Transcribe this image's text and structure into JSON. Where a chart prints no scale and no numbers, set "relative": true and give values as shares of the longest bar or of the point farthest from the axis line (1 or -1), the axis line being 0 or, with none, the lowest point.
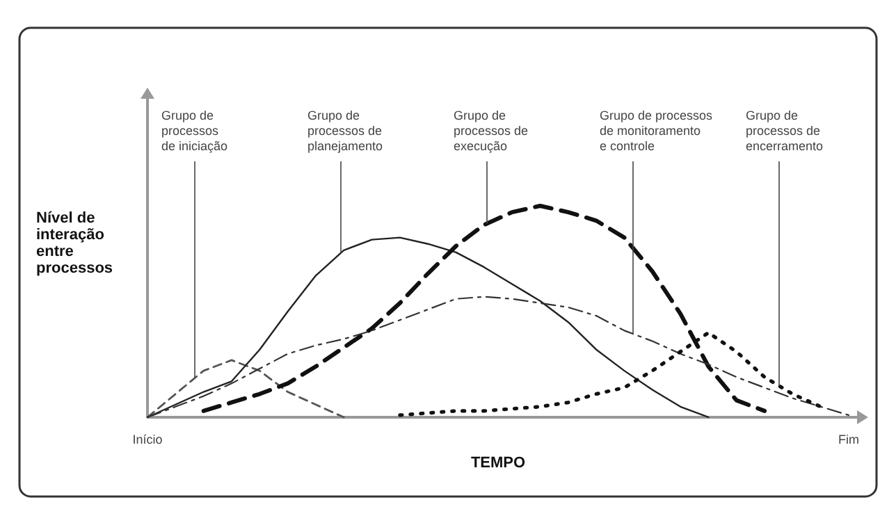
{
  "chart_data": {
    "type": "line",
    "relative": true,
    "xlabel": "TEMPO",
    "ylabel": "Nível de\ninteração\nentre\nprocessos",
    "marker": "none",
    "categories": [
      "Início",
      null,
      null,
      null,
      null,
      null,
      null,
      null,
      null,
      null,
      null,
      null,
      null,
      null,
      null,
      null,
      null,
      null,
      null,
      null,
      null,
      null,
      null,
      null,
      null,
      "Fim"
    ],
    "series": [
      {
        "color": "#555555",
        "line_style": "dashed",
        "values": [
          0,
          0.11,
          0.22,
          0.27,
          0.22,
          0.12,
          0.06,
          0,
          null,
          null,
          null,
          null,
          null,
          null,
          null,
          null,
          null,
          null,
          null,
          null,
          null,
          null,
          null,
          null,
          null,
          null
        ]
      },
      {
        "color": "#222222",
        "line_style": "solid",
        "values": [
          0,
          0.06,
          0.12,
          0.17,
          0.32,
          0.5,
          0.67,
          0.79,
          0.84,
          0.85,
          0.82,
          0.78,
          0.71,
          0.63,
          0.55,
          0.45,
          0.32,
          0.22,
          0.13,
          0.05,
          0,
          null,
          null,
          null,
          null,
          null
        ]
      },
      {
        "color": "#111111",
        "line_style": "dashed",
        "values": [
          null,
          null,
          0.03,
          0.07,
          0.11,
          0.16,
          0.24,
          0.33,
          0.42,
          0.54,
          0.68,
          0.81,
          0.91,
          0.97,
          1,
          0.97,
          0.93,
          0.85,
          0.69,
          0.49,
          0.24,
          0.08,
          0.03,
          null,
          null,
          null
        ]
      },
      {
        "color": "#333333",
        "line_style": "dashdot",
        "values": [
          0,
          0.05,
          0.1,
          0.16,
          0.23,
          0.3,
          0.34,
          0.37,
          0.41,
          0.46,
          0.51,
          0.56,
          0.57,
          0.56,
          0.54,
          0.52,
          0.48,
          0.41,
          0.36,
          0.3,
          0.25,
          0.19,
          0.14,
          0.09,
          0.05,
          0.01
        ]
      },
      {
        "color": "#111111",
        "line_style": "dotted",
        "values": [
          null,
          null,
          null,
          null,
          null,
          null,
          null,
          null,
          null,
          0.01,
          0.02,
          0.03,
          0.03,
          0.04,
          0.05,
          0.07,
          0.11,
          0.14,
          0.22,
          0.31,
          0.4,
          0.31,
          0.19,
          0.11,
          0.05,
          null
        ]
      }
    ],
    "annotations": [
      "Grupo de\nprocessos\nde iniciação",
      "Grupo de\nprocessos de\nplanejamento",
      "Grupo de\nprocessos de\nexecução",
      "Grupo de processos\nde monitoramento\ne controle",
      "Grupo de\nprocessos de\nencerramento"
    ]
  }
}
